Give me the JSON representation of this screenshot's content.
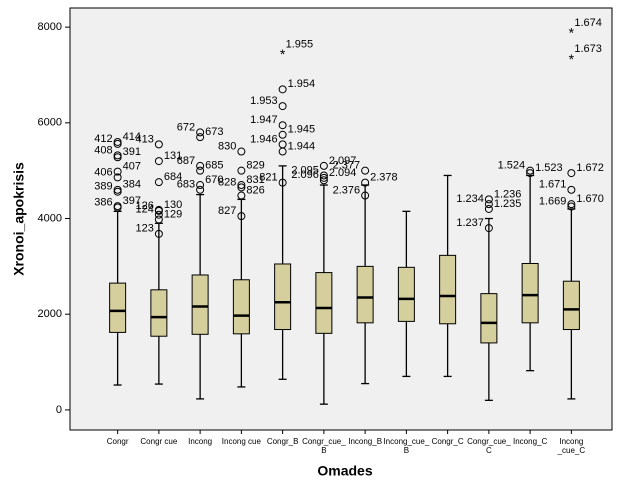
{
  "chart_data": {
    "type": "boxplot",
    "x_label": "Omades",
    "y_label": "Xronoi_apokrisis",
    "ylim": [
      -420,
      8400
    ],
    "yticks": [
      0,
      2000,
      4000,
      6000,
      8000
    ],
    "color": "#d4cf9c",
    "background": "#f0f0f0",
    "categories": [
      "Congr",
      "Congr cue",
      "Incong",
      "Incong cue",
      "Congr_B",
      "Congr_cue_\nB",
      "Incong_B",
      "Incong_cue_\nB",
      "Congr_C",
      "Congr_cue_\nC",
      "Incong_C",
      "Incong\n_cue_C"
    ],
    "boxes": [
      {
        "low": 520,
        "q1": 1620,
        "median": 2070,
        "q3": 2650,
        "high": 4150,
        "outliers": [
          {
            "value": 5560,
            "label": "412"
          },
          {
            "value": 5600,
            "label": "414"
          },
          {
            "value": 5320,
            "label": "408"
          },
          {
            "value": 5280,
            "label": "391"
          },
          {
            "value": 4860,
            "label": "406"
          },
          {
            "value": 4980,
            "label": "407"
          },
          {
            "value": 4560,
            "label": "389"
          },
          {
            "value": 4600,
            "label": "384"
          },
          {
            "value": 4230,
            "label": "386"
          },
          {
            "value": 4260,
            "label": "397"
          }
        ],
        "extremes": []
      },
      {
        "low": 540,
        "q1": 1540,
        "median": 1940,
        "q3": 2510,
        "high": 3900,
        "outliers": [
          {
            "value": 5550,
            "label": "413"
          },
          {
            "value": 5200,
            "label": "131"
          },
          {
            "value": 4160,
            "label": "126"
          },
          {
            "value": 4760,
            "label": "684"
          },
          {
            "value": 3680,
            "label": "123"
          },
          {
            "value": 4180,
            "label": "130"
          },
          {
            "value": 4080,
            "label": "124"
          },
          {
            "value": 3980,
            "label": "129"
          }
        ],
        "extremes": []
      },
      {
        "low": 230,
        "q1": 1580,
        "median": 2160,
        "q3": 2820,
        "high": 4500,
        "outliers": [
          {
            "value": 5800,
            "label": "672"
          },
          {
            "value": 5700,
            "label": "673"
          },
          {
            "value": 5100,
            "label": "687"
          },
          {
            "value": 5000,
            "label": "685"
          },
          {
            "value": 4600,
            "label": "683"
          },
          {
            "value": 4700,
            "label": "670"
          }
        ],
        "extremes": []
      },
      {
        "low": 480,
        "q1": 1590,
        "median": 1970,
        "q3": 2720,
        "high": 4400,
        "outliers": [
          {
            "value": 5400,
            "label": "830"
          },
          {
            "value": 5000,
            "label": "829"
          },
          {
            "value": 4650,
            "label": "828"
          },
          {
            "value": 4700,
            "label": "831"
          },
          {
            "value": 4050,
            "label": "827"
          },
          {
            "value": 4480,
            "label": "826"
          }
        ],
        "extremes": []
      },
      {
        "low": 640,
        "q1": 1680,
        "median": 2250,
        "q3": 3050,
        "high": 5100,
        "outliers": [
          {
            "value": 6350,
            "label": "1.953"
          },
          {
            "value": 6700,
            "label": "1.954"
          },
          {
            "value": 5950,
            "label": "1.947"
          },
          {
            "value": 5750,
            "label": "1.945"
          },
          {
            "value": 5550,
            "label": "1.946"
          },
          {
            "value": 5400,
            "label": "1.944"
          },
          {
            "value": 4750,
            "label": "821"
          }
        ],
        "extremes": [
          {
            "value": 7450,
            "label": "1.955"
          }
        ]
      },
      {
        "low": 120,
        "q1": 1600,
        "median": 2130,
        "q3": 2870,
        "high": 4700,
        "outliers": [
          {
            "value": 4900,
            "label": "2.095"
          },
          {
            "value": 5100,
            "label": "2.097"
          },
          {
            "value": 4800,
            "label": "2.096"
          },
          {
            "value": 4850,
            "label": "2.094"
          }
        ],
        "extremes": []
      },
      {
        "low": 550,
        "q1": 1820,
        "median": 2350,
        "q3": 3000,
        "high": 4700,
        "outliers": [
          {
            "value": 5000,
            "label": "2.377"
          },
          {
            "value": 4750,
            "label": "2.378"
          },
          {
            "value": 4480,
            "label": "2.376"
          }
        ],
        "extremes": []
      },
      {
        "low": 700,
        "q1": 1850,
        "median": 2320,
        "q3": 2980,
        "high": 4150,
        "outliers": [],
        "extremes": []
      },
      {
        "low": 700,
        "q1": 1800,
        "median": 2380,
        "q3": 3230,
        "high": 4900,
        "outliers": [],
        "extremes": []
      },
      {
        "low": 200,
        "q1": 1400,
        "median": 1820,
        "q3": 2430,
        "high": 4000,
        "outliers": [
          {
            "value": 4300,
            "label": "1.234"
          },
          {
            "value": 4400,
            "label": "1.236"
          },
          {
            "value": 3800,
            "label": "1.237"
          },
          {
            "value": 4200,
            "label": "1.235"
          }
        ],
        "extremes": []
      },
      {
        "low": 820,
        "q1": 1820,
        "median": 2400,
        "q3": 3060,
        "high": 4900,
        "outliers": [
          {
            "value": 5000,
            "label": "1.524"
          },
          {
            "value": 4950,
            "label": "1.523"
          }
        ],
        "extremes": []
      },
      {
        "low": 230,
        "q1": 1680,
        "median": 2100,
        "q3": 2690,
        "high": 4200,
        "outliers": [
          {
            "value": 4600,
            "label": "1.671"
          },
          {
            "value": 4950,
            "label": "1.672"
          },
          {
            "value": 4250,
            "label": "1.669"
          },
          {
            "value": 4300,
            "label": "1.670"
          }
        ],
        "extremes": [
          {
            "value": 7900,
            "label": "1.674"
          },
          {
            "value": 7350,
            "label": "1.673"
          }
        ]
      }
    ]
  }
}
